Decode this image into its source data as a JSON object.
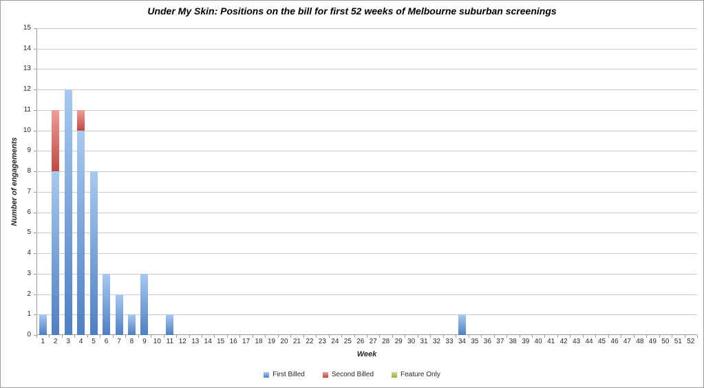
{
  "chart_data": {
    "type": "bar",
    "stacked": true,
    "title": "Under My Skin: Positions on the bill for first 52 weeks of Melbourne suburban screenings",
    "xlabel": "Week",
    "ylabel": "Number of engagements",
    "ylim": [
      0,
      15
    ],
    "yticks": [
      0,
      1,
      2,
      3,
      4,
      5,
      6,
      7,
      8,
      9,
      10,
      11,
      12,
      13,
      14,
      15
    ],
    "grid": true,
    "legend_position": "bottom",
    "categories": [
      1,
      2,
      3,
      4,
      5,
      6,
      7,
      8,
      9,
      10,
      11,
      12,
      13,
      14,
      15,
      16,
      17,
      18,
      19,
      20,
      21,
      22,
      23,
      24,
      25,
      26,
      27,
      28,
      29,
      30,
      31,
      32,
      33,
      34,
      35,
      36,
      37,
      38,
      39,
      40,
      41,
      42,
      43,
      44,
      45,
      46,
      47,
      48,
      49,
      50,
      51,
      52
    ],
    "series": [
      {
        "name": "First Billed",
        "color_top": "#a8c9f0",
        "color_bottom": "#4e7fc4",
        "values": [
          1,
          8,
          12,
          10,
          8,
          3,
          2,
          1,
          3,
          0,
          1,
          0,
          0,
          0,
          0,
          0,
          0,
          0,
          0,
          0,
          0,
          0,
          0,
          0,
          0,
          0,
          0,
          0,
          0,
          0,
          0,
          0,
          0,
          1,
          0,
          0,
          0,
          0,
          0,
          0,
          0,
          0,
          0,
          0,
          0,
          0,
          0,
          0,
          0,
          0,
          0,
          0
        ]
      },
      {
        "name": "Second Billed",
        "color_top": "#f09d98",
        "color_bottom": "#c24843",
        "values": [
          0,
          3,
          0,
          1,
          0,
          0,
          0,
          0,
          0,
          0,
          0,
          0,
          0,
          0,
          0,
          0,
          0,
          0,
          0,
          0,
          0,
          0,
          0,
          0,
          0,
          0,
          0,
          0,
          0,
          0,
          0,
          0,
          0,
          0,
          0,
          0,
          0,
          0,
          0,
          0,
          0,
          0,
          0,
          0,
          0,
          0,
          0,
          0,
          0,
          0,
          0,
          0
        ]
      },
      {
        "name": "Feature Only",
        "color_top": "#c8dc8a",
        "color_bottom": "#93b044",
        "values": [
          0,
          0,
          0,
          0,
          0,
          0,
          0,
          0,
          0,
          0,
          0,
          0,
          0,
          0,
          0,
          0,
          0,
          0,
          0,
          0,
          0,
          0,
          0,
          0,
          0,
          0,
          0,
          0,
          0,
          0,
          0,
          0,
          0,
          0,
          0,
          0,
          0,
          0,
          0,
          0,
          0,
          0,
          0,
          0,
          0,
          0,
          0,
          0,
          0,
          0,
          0,
          0
        ]
      }
    ],
    "colors": {
      "grid": "#c9c9c9",
      "axis": "#9b9b9b",
      "text": "#262626",
      "background": "#ffffff"
    }
  }
}
